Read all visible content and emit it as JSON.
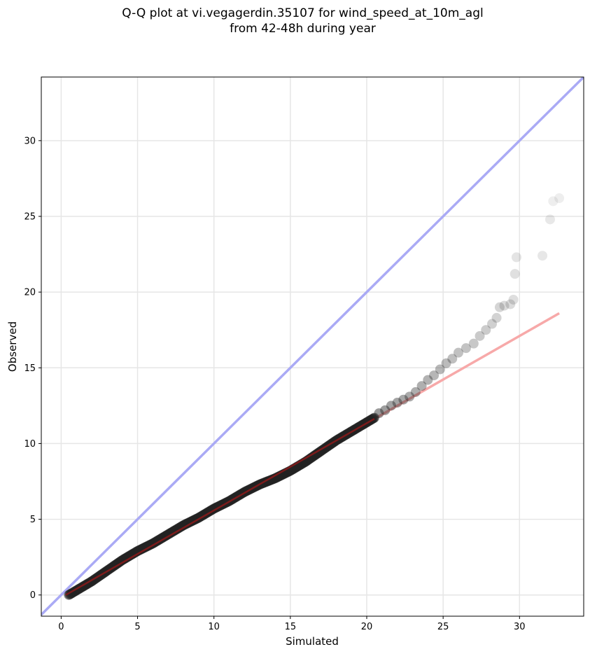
{
  "chart_data": {
    "type": "scatter",
    "title_line1": "Q-Q plot at vi.vegagerdin.35107 for wind_speed_at_10m_agl",
    "title_line2": "from 42-48h during year",
    "xlabel": "Simulated",
    "ylabel": "Observed",
    "xlim": [
      -1.3,
      34.2
    ],
    "ylim": [
      -1.4,
      34.2
    ],
    "xticks": [
      0,
      5,
      10,
      15,
      20,
      25,
      30
    ],
    "yticks": [
      0,
      5,
      10,
      15,
      20,
      25,
      30
    ],
    "grid": true,
    "colors": {
      "points": "#222222",
      "identity_line": "#aaaaf5",
      "fit_line": "#f7a9a9",
      "fit_line_dense": "#8b1a1a",
      "grid": "#e6e6e6"
    },
    "identity_line": {
      "x": [
        -1.3,
        34.2
      ],
      "y": [
        -1.3,
        34.2
      ]
    },
    "fit_line": {
      "x": [
        0.3,
        32.6
      ],
      "y": [
        0.0,
        18.6
      ]
    },
    "dense_curve": {
      "x": [
        0.5,
        1.0,
        2.0,
        3.0,
        4.0,
        5.0,
        6.0,
        7.0,
        8.0,
        9.0,
        10.0,
        11.0,
        12.0,
        13.0,
        14.0,
        15.0,
        16.0,
        17.0,
        18.0,
        19.0,
        20.0,
        20.5
      ],
      "y": [
        0.0,
        0.3,
        0.9,
        1.6,
        2.3,
        2.9,
        3.4,
        4.0,
        4.6,
        5.1,
        5.7,
        6.2,
        6.8,
        7.3,
        7.7,
        8.2,
        8.8,
        9.5,
        10.2,
        10.8,
        11.4,
        11.7
      ]
    },
    "tail_points": {
      "x": [
        20.8,
        21.2,
        21.6,
        22.0,
        22.4,
        22.8,
        23.2,
        23.6,
        24.0,
        24.4,
        24.8,
        25.2,
        25.6,
        26.0,
        26.5,
        27.0,
        27.4,
        27.8,
        28.2,
        28.5,
        28.7,
        29.0,
        29.4,
        29.6,
        29.7,
        29.8,
        31.5,
        32.0,
        32.2,
        32.6
      ],
      "y": [
        12.0,
        12.2,
        12.5,
        12.7,
        12.9,
        13.1,
        13.4,
        13.8,
        14.2,
        14.5,
        14.9,
        15.3,
        15.6,
        16.0,
        16.3,
        16.6,
        17.1,
        17.5,
        17.9,
        18.3,
        19.0,
        19.1,
        19.2,
        19.5,
        21.2,
        22.3,
        22.4,
        24.8,
        26.0,
        26.2
      ]
    }
  }
}
